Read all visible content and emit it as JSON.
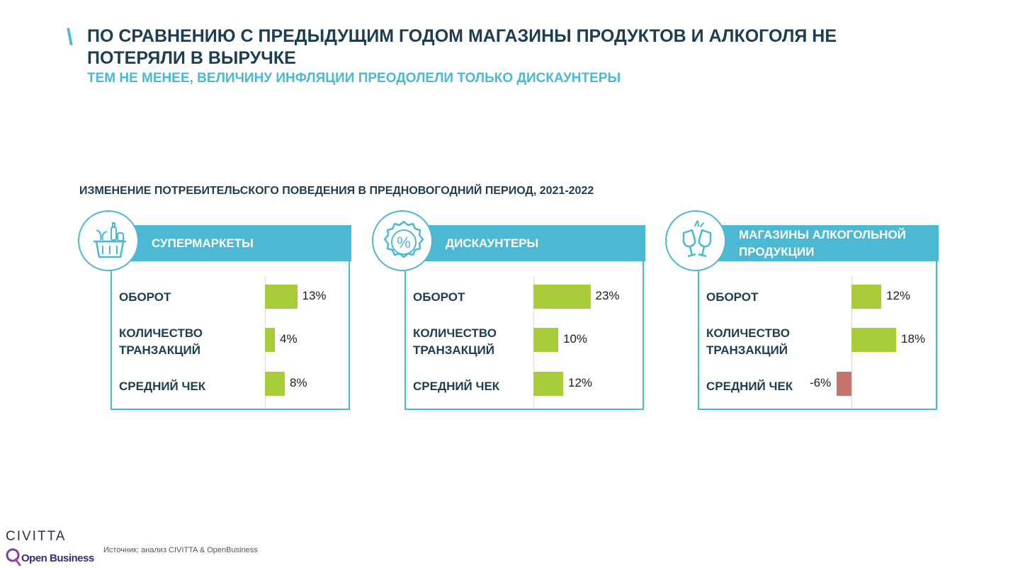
{
  "header": {
    "title": "ПО СРАВНЕНИЮ С ПРЕДЫДУЩИМ ГОДОМ МАГАЗИНЫ ПРОДУКТОВ И АЛКОГОЛЯ НЕ ПОТЕРЯЛИ В ВЫРУЧКЕ",
    "subtitle": "ТЕМ НЕ МЕНЕЕ, ВЕЛИЧИНУ ИНФЛЯЦИИ ПРЕОДОЛЕЛИ ТОЛЬКО ДИСКАУНТЕРЫ",
    "section_title": "ИЗМЕНЕНИЕ ПОТРЕБИТЕЛЬСКОГО ПОВЕДЕНИЯ В ПРЕДНОВОГОДНИЙ ПЕРИОД, 2021-2022"
  },
  "colors": {
    "accent": "#4bb8d4",
    "title": "#1c3d52",
    "positive": "#a9cd3a",
    "negative": "#c7736c"
  },
  "icons": [
    "grocery-basket-icon",
    "percent-badge-icon",
    "wine-glasses-icon"
  ],
  "chart_data": [
    {
      "type": "bar",
      "title": "СУПЕРМАРКЕТЫ",
      "categories": [
        "ОБОРОТ",
        "КОЛИЧЕСТВО ТРАНЗАКЦИЙ",
        "СРЕДНИЙ ЧЕК"
      ],
      "values": [
        13,
        4,
        8
      ],
      "labels": [
        "13%",
        "4%",
        "8%"
      ]
    },
    {
      "type": "bar",
      "title": "ДИСКАУНТЕРЫ",
      "categories": [
        "ОБОРОТ",
        "КОЛИЧЕСТВО ТРАНЗАКЦИЙ",
        "СРЕДНИЙ ЧЕК"
      ],
      "values": [
        23,
        10,
        12
      ],
      "labels": [
        "23%",
        "10%",
        "12%"
      ]
    },
    {
      "type": "bar",
      "title": "МАГАЗИНЫ АЛКОГОЛЬНОЙ ПРОДУКЦИИ",
      "categories": [
        "ОБОРОТ",
        "КОЛИЧЕСТВО ТРАНЗАКЦИЙ",
        "СРЕДНИЙ ЧЕК"
      ],
      "values": [
        12,
        18,
        -6
      ],
      "labels": [
        "12%",
        "18%",
        "-6%"
      ]
    }
  ],
  "footer": {
    "brand": "CIVITTA",
    "partner": "Open Business",
    "source": "Источник: анализ CIVITTA & OpenBusiness"
  }
}
